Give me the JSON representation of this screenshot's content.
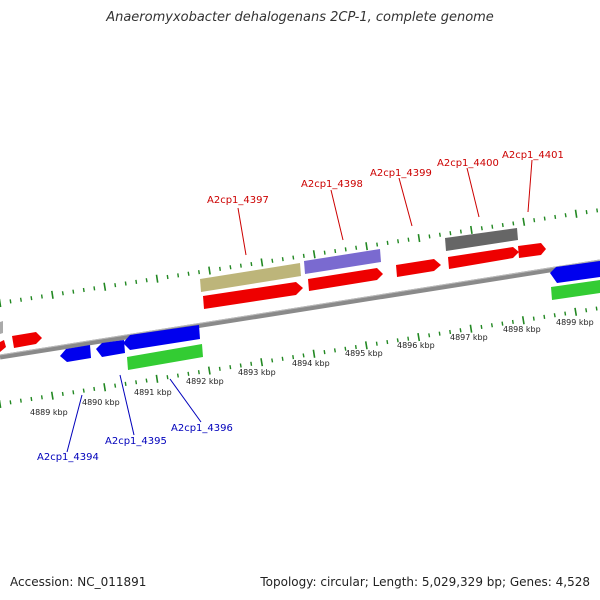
{
  "title": "Anaeromyxobacter dehalogenans 2CP-1, complete genome",
  "footer": {
    "accession": "Accession: NC_011891",
    "topology": "Topology: circular; Length: 5,029,329 bp; Genes: 4,528"
  },
  "colors": {
    "forward": "#ee0000",
    "reverse": "#0000ee",
    "label_forward": "#cc0000",
    "label_reverse": "#0000bb",
    "tick": "#228822",
    "backbone": "#888888"
  },
  "kbp_labels": [
    "4889 kbp",
    "4890 kbp",
    "4891 kbp",
    "4892 kbp",
    "4893 kbp",
    "4894 kbp",
    "4895 kbp",
    "4896 kbp",
    "4897 kbp",
    "4898 kbp",
    "4899 kbp"
  ],
  "forward_genes": [
    {
      "label": "A2cp1_4397"
    },
    {
      "label": "A2cp1_4398"
    },
    {
      "label": "A2cp1_4399"
    },
    {
      "label": "A2cp1_4400"
    },
    {
      "label": "A2cp1_4401"
    }
  ],
  "reverse_genes": [
    {
      "label": "A2cp1_4394"
    },
    {
      "label": "A2cp1_4395"
    },
    {
      "label": "A2cp1_4396"
    }
  ]
}
